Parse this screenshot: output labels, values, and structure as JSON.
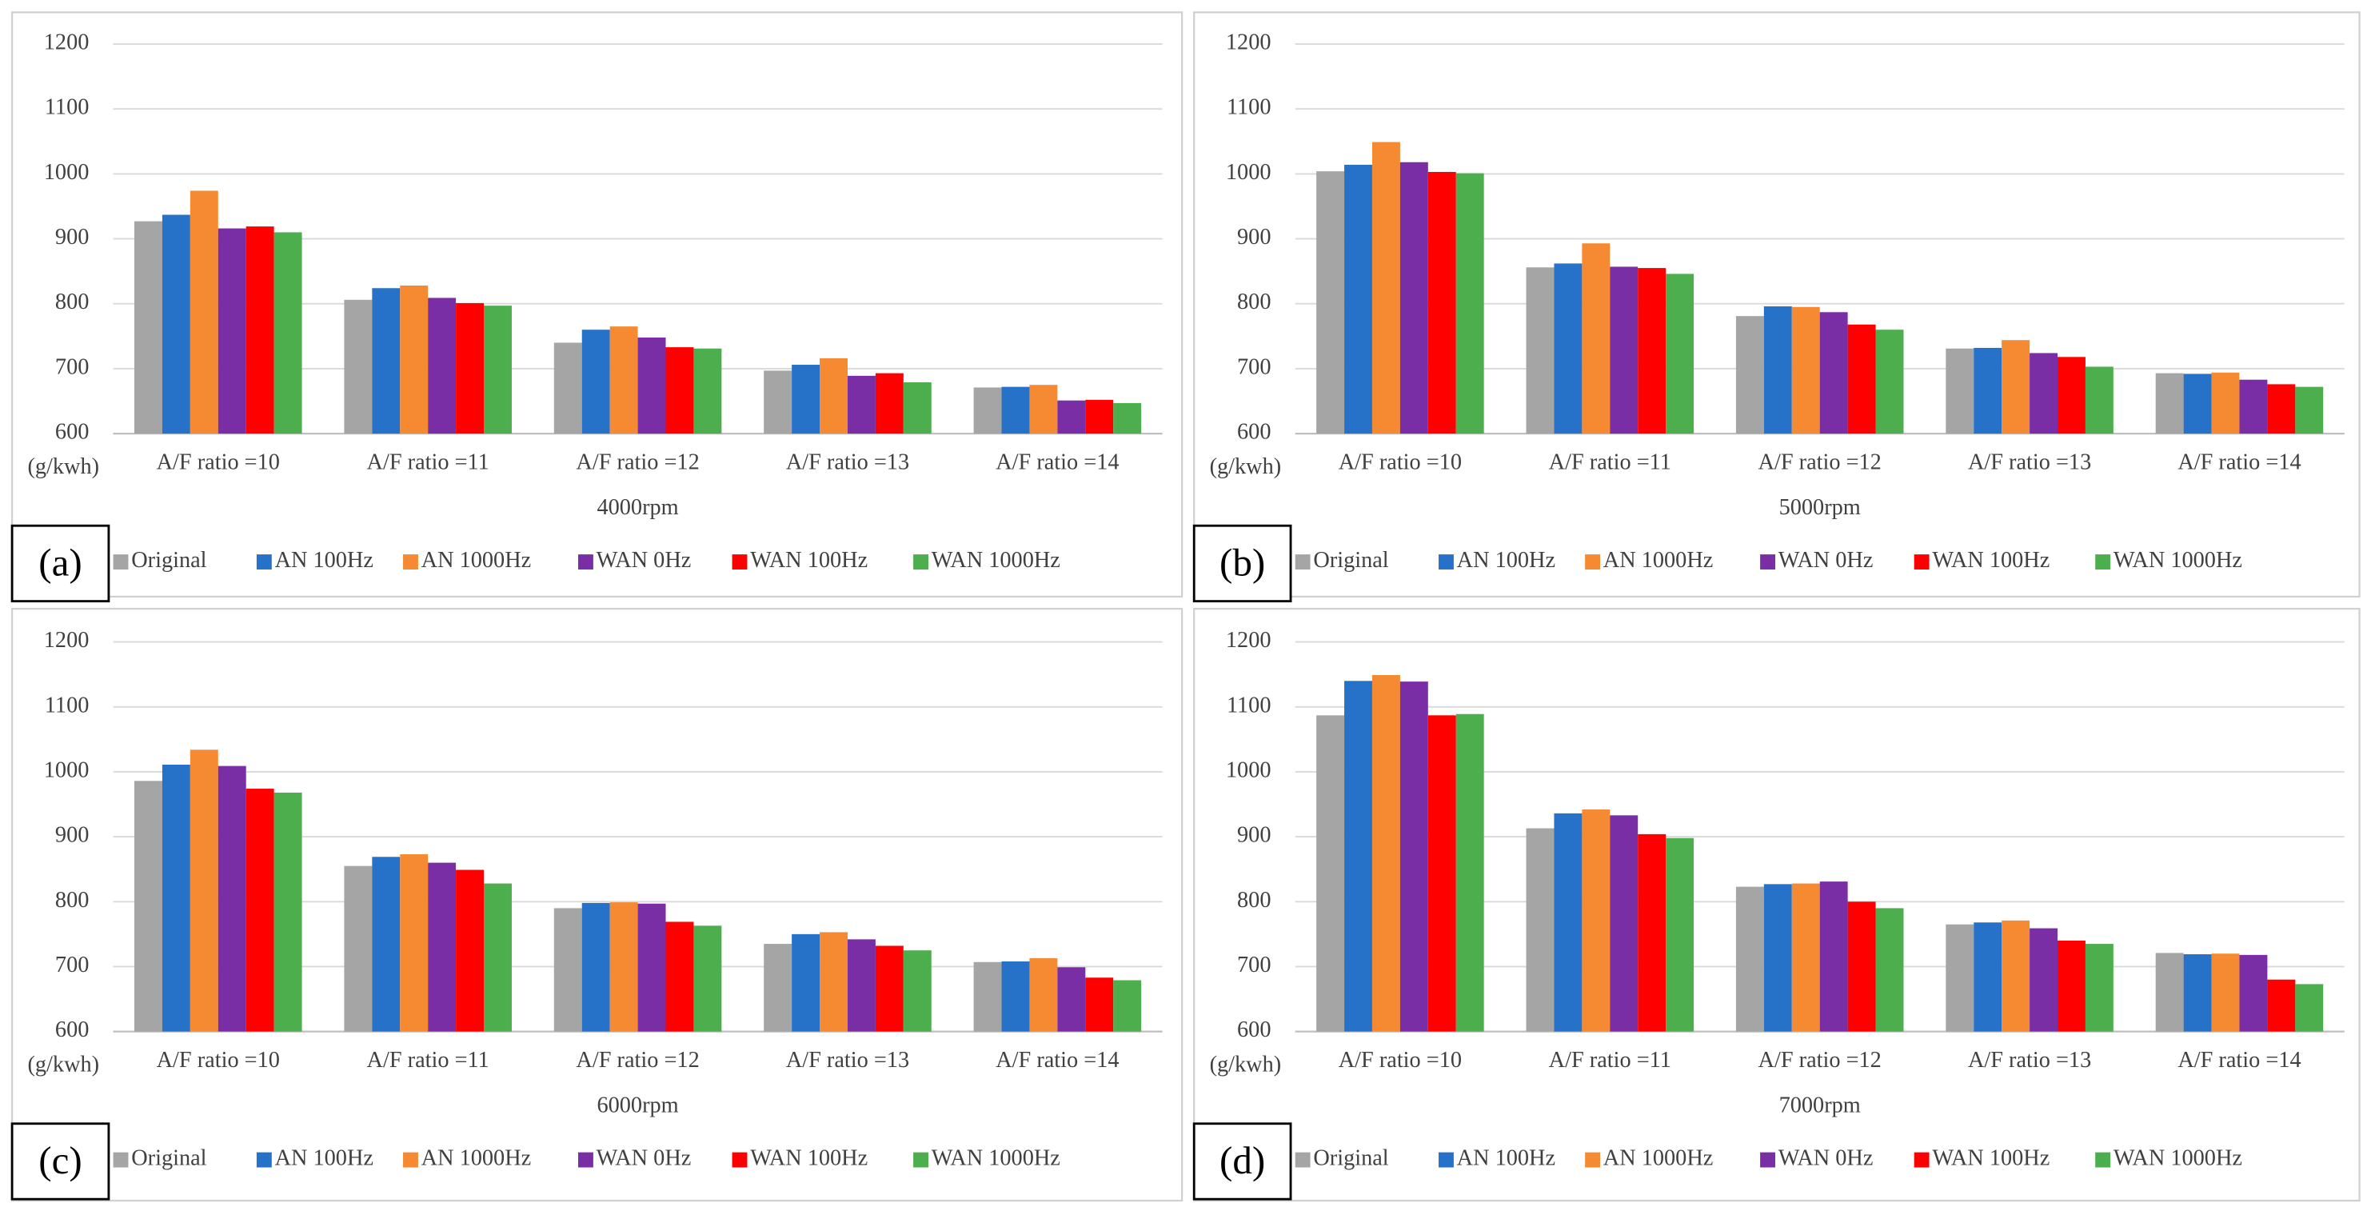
{
  "chart_data": [
    {
      "type": "bar",
      "panel_label": "(a)",
      "x_label": "4000rpm",
      "y_label": "(g/kwh)",
      "categories": [
        "A/F ratio =10",
        "A/F ratio =11",
        "A/F ratio =12",
        "A/F ratio =13",
        "A/F ratio =14"
      ],
      "series": [
        {
          "name": "Original",
          "color": "#a5a5a5",
          "values": [
            927,
            806,
            740,
            697,
            671
          ]
        },
        {
          "name": "AN 100Hz",
          "color": "#2672c8",
          "values": [
            937,
            824,
            760,
            706,
            672
          ]
        },
        {
          "name": "AN 1000Hz",
          "color": "#f58a32",
          "values": [
            974,
            828,
            765,
            716,
            675
          ]
        },
        {
          "name": "WAN 0Hz",
          "color": "#7a2ea6",
          "values": [
            916,
            809,
            748,
            689,
            651
          ]
        },
        {
          "name": "WAN 100Hz",
          "color": "#ff0000",
          "values": [
            919,
            801,
            733,
            693,
            652
          ]
        },
        {
          "name": "WAN 1000Hz",
          "color": "#4cae4c",
          "values": [
            910,
            797,
            731,
            679,
            647
          ]
        }
      ],
      "ylim": [
        600,
        1200
      ],
      "yticks": [
        600,
        700,
        800,
        900,
        1000,
        1100,
        1200
      ],
      "grid": true
    },
    {
      "type": "bar",
      "panel_label": "(b)",
      "x_label": "5000rpm",
      "y_label": "(g/kwh)",
      "categories": [
        "A/F ratio =10",
        "A/F ratio =11",
        "A/F ratio =12",
        "A/F ratio =13",
        "A/F ratio =14"
      ],
      "series": [
        {
          "name": "Original",
          "color": "#a5a5a5",
          "values": [
            1004,
            856,
            781,
            731,
            693
          ]
        },
        {
          "name": "AN 100Hz",
          "color": "#2672c8",
          "values": [
            1014,
            862,
            796,
            732,
            692
          ]
        },
        {
          "name": "AN 1000Hz",
          "color": "#f58a32",
          "values": [
            1049,
            893,
            795,
            744,
            694
          ]
        },
        {
          "name": "WAN 0Hz",
          "color": "#7a2ea6",
          "values": [
            1018,
            857,
            787,
            724,
            683
          ]
        },
        {
          "name": "WAN 100Hz",
          "color": "#ff0000",
          "values": [
            1003,
            855,
            768,
            718,
            676
          ]
        },
        {
          "name": "WAN 1000Hz",
          "color": "#4cae4c",
          "values": [
            1001,
            846,
            760,
            703,
            672
          ]
        }
      ],
      "ylim": [
        600,
        1200
      ],
      "yticks": [
        600,
        700,
        800,
        900,
        1000,
        1100,
        1200
      ],
      "grid": true
    },
    {
      "type": "bar",
      "panel_label": "(c)",
      "x_label": "6000rpm",
      "y_label": "(g/kwh)",
      "categories": [
        "A/F ratio =10",
        "A/F ratio =11",
        "A/F ratio =12",
        "A/F ratio =13",
        "A/F ratio =14"
      ],
      "series": [
        {
          "name": "Original",
          "color": "#a5a5a5",
          "values": [
            986,
            855,
            790,
            735,
            707
          ]
        },
        {
          "name": "AN 100Hz",
          "color": "#2672c8",
          "values": [
            1011,
            869,
            798,
            750,
            708
          ]
        },
        {
          "name": "AN 1000Hz",
          "color": "#f58a32",
          "values": [
            1034,
            873,
            799,
            753,
            713
          ]
        },
        {
          "name": "WAN 0Hz",
          "color": "#7a2ea6",
          "values": [
            1009,
            860,
            797,
            742,
            699
          ]
        },
        {
          "name": "WAN 100Hz",
          "color": "#ff0000",
          "values": [
            974,
            849,
            769,
            732,
            683
          ]
        },
        {
          "name": "WAN 1000Hz",
          "color": "#4cae4c",
          "values": [
            968,
            828,
            763,
            725,
            679
          ]
        }
      ],
      "ylim": [
        600,
        1200
      ],
      "yticks": [
        600,
        700,
        800,
        900,
        1000,
        1100,
        1200
      ],
      "grid": true
    },
    {
      "type": "bar",
      "panel_label": "(d)",
      "x_label": "7000rpm",
      "y_label": "(g/kwh)",
      "categories": [
        "A/F ratio =10",
        "A/F ratio =11",
        "A/F ratio =12",
        "A/F ratio =13",
        "A/F ratio =14"
      ],
      "series": [
        {
          "name": "Original",
          "color": "#a5a5a5",
          "values": [
            1087,
            913,
            823,
            765,
            721
          ]
        },
        {
          "name": "AN 100Hz",
          "color": "#2672c8",
          "values": [
            1140,
            936,
            827,
            768,
            719
          ]
        },
        {
          "name": "AN 1000Hz",
          "color": "#f58a32",
          "values": [
            1149,
            942,
            828,
            771,
            720
          ]
        },
        {
          "name": "WAN 0Hz",
          "color": "#7a2ea6",
          "values": [
            1139,
            933,
            831,
            759,
            718
          ]
        },
        {
          "name": "WAN 100Hz",
          "color": "#ff0000",
          "values": [
            1087,
            904,
            800,
            740,
            680
          ]
        },
        {
          "name": "WAN 1000Hz",
          "color": "#4cae4c",
          "values": [
            1089,
            898,
            790,
            735,
            673
          ]
        }
      ],
      "ylim": [
        600,
        1200
      ],
      "yticks": [
        600,
        700,
        800,
        900,
        1000,
        1100,
        1200
      ],
      "grid": true
    }
  ]
}
